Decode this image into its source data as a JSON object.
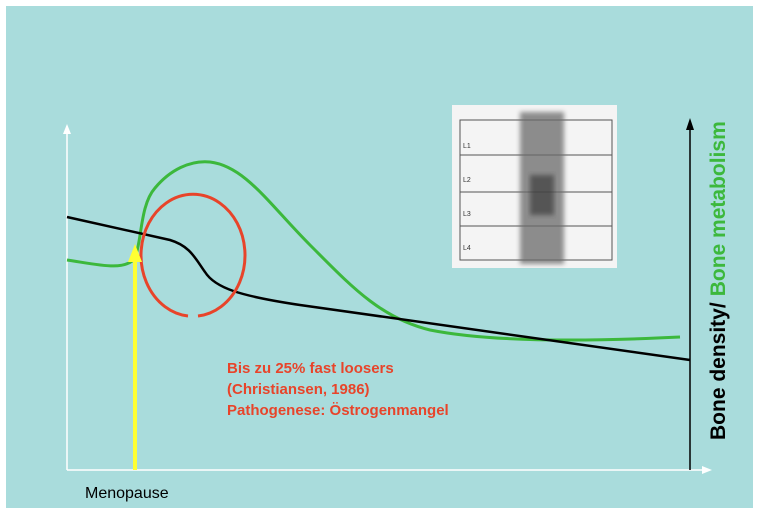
{
  "axis_label": {
    "part1": "Bone density/",
    "part2": "Bone metabolism"
  },
  "x_label": "Menopause",
  "annotation": {
    "lines": [
      "Bis zu 25% fast loosers",
      "(Christiansen, 1986)",
      "Pathogenese: Östrogenmangel"
    ]
  },
  "scan": {
    "labels": [
      "L1",
      "L2",
      "L3",
      "L4"
    ]
  }
}
